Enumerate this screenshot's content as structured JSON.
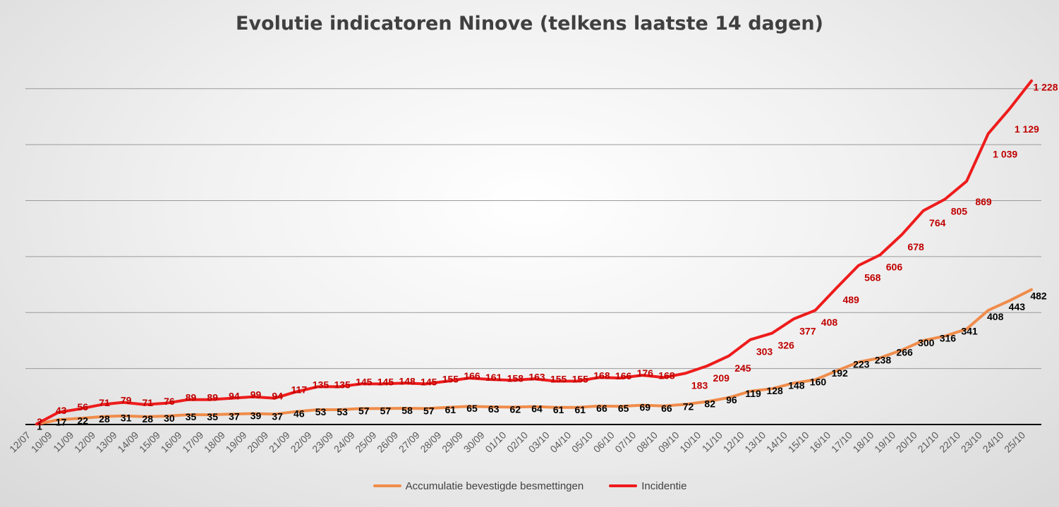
{
  "colors": {
    "accumulatie": "#F08C4B",
    "incidentie": "#EE1C1C",
    "label_red": "#C00000",
    "label_black": "#000000",
    "grid": "#9a9a9a"
  },
  "chart_data": {
    "type": "line",
    "title": "Evolutie indicatoren Ninove (telkens laatste 14 dagen)",
    "xlabel": "",
    "ylabel": "",
    "ylim": [
      0,
      1300
    ],
    "grid": true,
    "legend_position": "bottom",
    "categories": [
      "12/07",
      "10/09",
      "11/09",
      "12/09",
      "13/09",
      "14/09",
      "15/09",
      "16/09",
      "17/09",
      "18/09",
      "19/09",
      "20/09",
      "21/09",
      "22/09",
      "23/09",
      "24/09",
      "25/09",
      "26/09",
      "27/09",
      "28/09",
      "29/09",
      "30/09",
      "01/10",
      "02/10",
      "03/10",
      "04/10",
      "05/10",
      "06/10",
      "07/10",
      "08/10",
      "09/10",
      "10/10",
      "11/10",
      "12/10",
      "13/10",
      "14/10",
      "15/10",
      "16/10",
      "17/10",
      "18/10",
      "19/10",
      "20/10",
      "21/10",
      "22/10",
      "23/10",
      "24/10",
      "25/10"
    ],
    "series": [
      {
        "name": "Accumulatie bevestigde besmettingen",
        "values": [
          1,
          17,
          22,
          28,
          31,
          28,
          30,
          35,
          35,
          37,
          39,
          37,
          46,
          53,
          53,
          57,
          57,
          58,
          57,
          61,
          65,
          63,
          62,
          64,
          61,
          61,
          66,
          65,
          69,
          66,
          72,
          82,
          96,
          119,
          128,
          148,
          160,
          192,
          223,
          238,
          266,
          300,
          316,
          341,
          408,
          443,
          482
        ],
        "labels": [
          "1",
          "17",
          "22",
          "28",
          "31",
          "28",
          "30",
          "35",
          "35",
          "37",
          "39",
          "37",
          "46",
          "53",
          "53",
          "57",
          "57",
          "58",
          "57",
          "61",
          "65",
          "63",
          "62",
          "64",
          "61",
          "61",
          "66",
          "65",
          "69",
          "66",
          "72",
          "82",
          "96",
          "119",
          "128",
          "148",
          "160",
          "192",
          "223",
          "238",
          "266",
          "300",
          "316",
          "341",
          "408",
          "443",
          "482"
        ]
      },
      {
        "name": "Incidentie",
        "values": [
          2,
          43,
          56,
          71,
          79,
          71,
          76,
          89,
          89,
          94,
          99,
          94,
          117,
          135,
          135,
          145,
          145,
          148,
          145,
          155,
          166,
          161,
          158,
          163,
          155,
          155,
          168,
          166,
          176,
          168,
          183,
          209,
          245,
          303,
          326,
          377,
          408,
          489,
          568,
          606,
          678,
          764,
          805,
          869,
          1039,
          1129,
          1228
        ],
        "labels": [
          "2",
          "43",
          "56",
          "71",
          "79",
          "71",
          "76",
          "89",
          "89",
          "94",
          "99",
          "94",
          "117",
          "135",
          "135",
          "145",
          "145",
          "148",
          "145",
          "155",
          "166",
          "161",
          "158",
          "163",
          "155",
          "155",
          "168",
          "166",
          "176",
          "168",
          "183",
          "209",
          "245",
          "303",
          "326",
          "377",
          "408",
          "489",
          "568",
          "606",
          "678",
          "764",
          "805",
          "869",
          "1 039",
          "1 129",
          "1 228"
        ]
      }
    ]
  }
}
